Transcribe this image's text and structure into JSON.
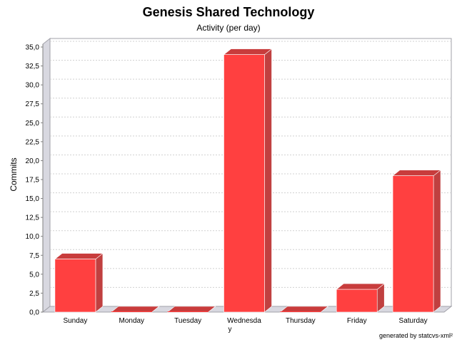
{
  "chart_data": {
    "type": "bar",
    "title": "Genesis Shared Technology",
    "subtitle": "Activity (per day)",
    "xlabel": "",
    "ylabel": "Commits",
    "categories": [
      "Sunday",
      "Monday",
      "Tuesday",
      "Wednesday",
      "Thursday",
      "Friday",
      "Saturday"
    ],
    "category_label_lines": [
      [
        "Sunday"
      ],
      [
        "Monday"
      ],
      [
        "Tuesday"
      ],
      [
        "Wednesda",
        "y"
      ],
      [
        "Thursday"
      ],
      [
        "Friday"
      ],
      [
        "Saturday"
      ]
    ],
    "values": [
      7,
      0,
      0,
      34,
      0,
      3,
      18
    ],
    "ylim": [
      0,
      35
    ],
    "yticks": [
      "0,0",
      "2,5",
      "5,0",
      "7,5",
      "10,0",
      "12,5",
      "15,0",
      "17,5",
      "20,0",
      "22,5",
      "25,0",
      "27,5",
      "30,0",
      "32,5",
      "35,0"
    ],
    "grid": true,
    "legend": "none",
    "bar_color": "#ff4040",
    "bar_side_color": "#c04040",
    "bar_top_color": "#c83c3c",
    "footer": "generated by statcvs-xml²"
  }
}
